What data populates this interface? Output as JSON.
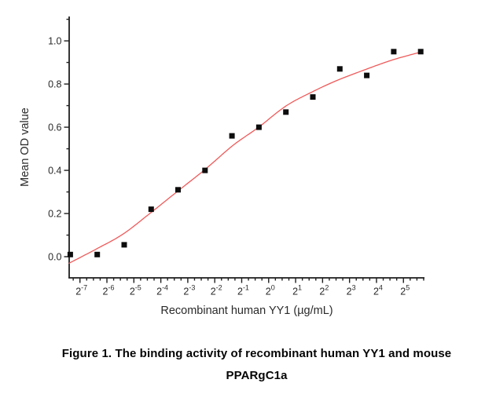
{
  "figure": {
    "caption_line1": "Figure 1. The binding activity of recombinant human YY1 and mouse",
    "caption_line2": "PPARgC1a"
  },
  "chart_data": {
    "type": "scatter",
    "title": "",
    "xlabel": "Recombinant human YY1 (µg/mL)",
    "ylabel": "Mean OD value",
    "x_scale": "log2",
    "x_tick_base": "2",
    "x_tick_exponents": [
      -7,
      -6,
      -5,
      -4,
      -3,
      -2,
      -1,
      0,
      1,
      2,
      3,
      4,
      5
    ],
    "x_minor_step_exp": 0.25,
    "xlim_exp": [
      -7.4,
      5.78
    ],
    "y_tick_labels": [
      "0.0",
      "0.2",
      "0.4",
      "0.6",
      "0.8",
      "1.0"
    ],
    "y_tick_values": [
      0.0,
      0.2,
      0.4,
      0.6,
      0.8,
      1.0
    ],
    "y_minor_values": [
      0.1,
      0.3,
      0.5,
      0.7,
      0.9,
      1.1
    ],
    "ylim": [
      -0.098,
      1.113
    ],
    "grid": false,
    "legend_position": "none",
    "axis_color": "#1d1d1d",
    "series": [
      {
        "name": "Mean OD value",
        "marker": "square",
        "marker_color": "#0d0d0d",
        "marker_size_px": 7,
        "x_ug_per_ml": [
          0.0061,
          0.0122,
          0.0244,
          0.0488,
          0.0977,
          0.1953,
          0.3906,
          0.7813,
          1.5625,
          3.125,
          6.25,
          12.5,
          25,
          50
        ],
        "x_exp2": [
          -7.36,
          -6.36,
          -5.36,
          -4.36,
          -3.36,
          -2.36,
          -1.36,
          -0.36,
          0.64,
          1.64,
          2.64,
          3.64,
          4.64,
          5.64
        ],
        "od": [
          0.01,
          0.01,
          0.055,
          0.22,
          0.31,
          0.4,
          0.56,
          0.6,
          0.67,
          0.74,
          0.87,
          0.84,
          0.95,
          0.95
        ]
      }
    ],
    "fit_curve": {
      "name": "sigmoidal dose-response fit",
      "color": "#ef5a5a",
      "stroke_width": 1.3,
      "samples_exp_od": [
        [
          -7.4,
          -0.03
        ],
        [
          -6.4,
          0.035
        ],
        [
          -5.4,
          0.105
        ],
        [
          -4.39,
          0.202
        ],
        [
          -3.39,
          0.302
        ],
        [
          -2.37,
          0.403
        ],
        [
          -1.33,
          0.515
        ],
        [
          -0.37,
          0.6
        ],
        [
          0.64,
          0.698
        ],
        [
          1.64,
          0.765
        ],
        [
          2.56,
          0.818
        ],
        [
          3.61,
          0.868
        ],
        [
          4.6,
          0.912
        ],
        [
          5.64,
          0.948
        ]
      ]
    }
  }
}
